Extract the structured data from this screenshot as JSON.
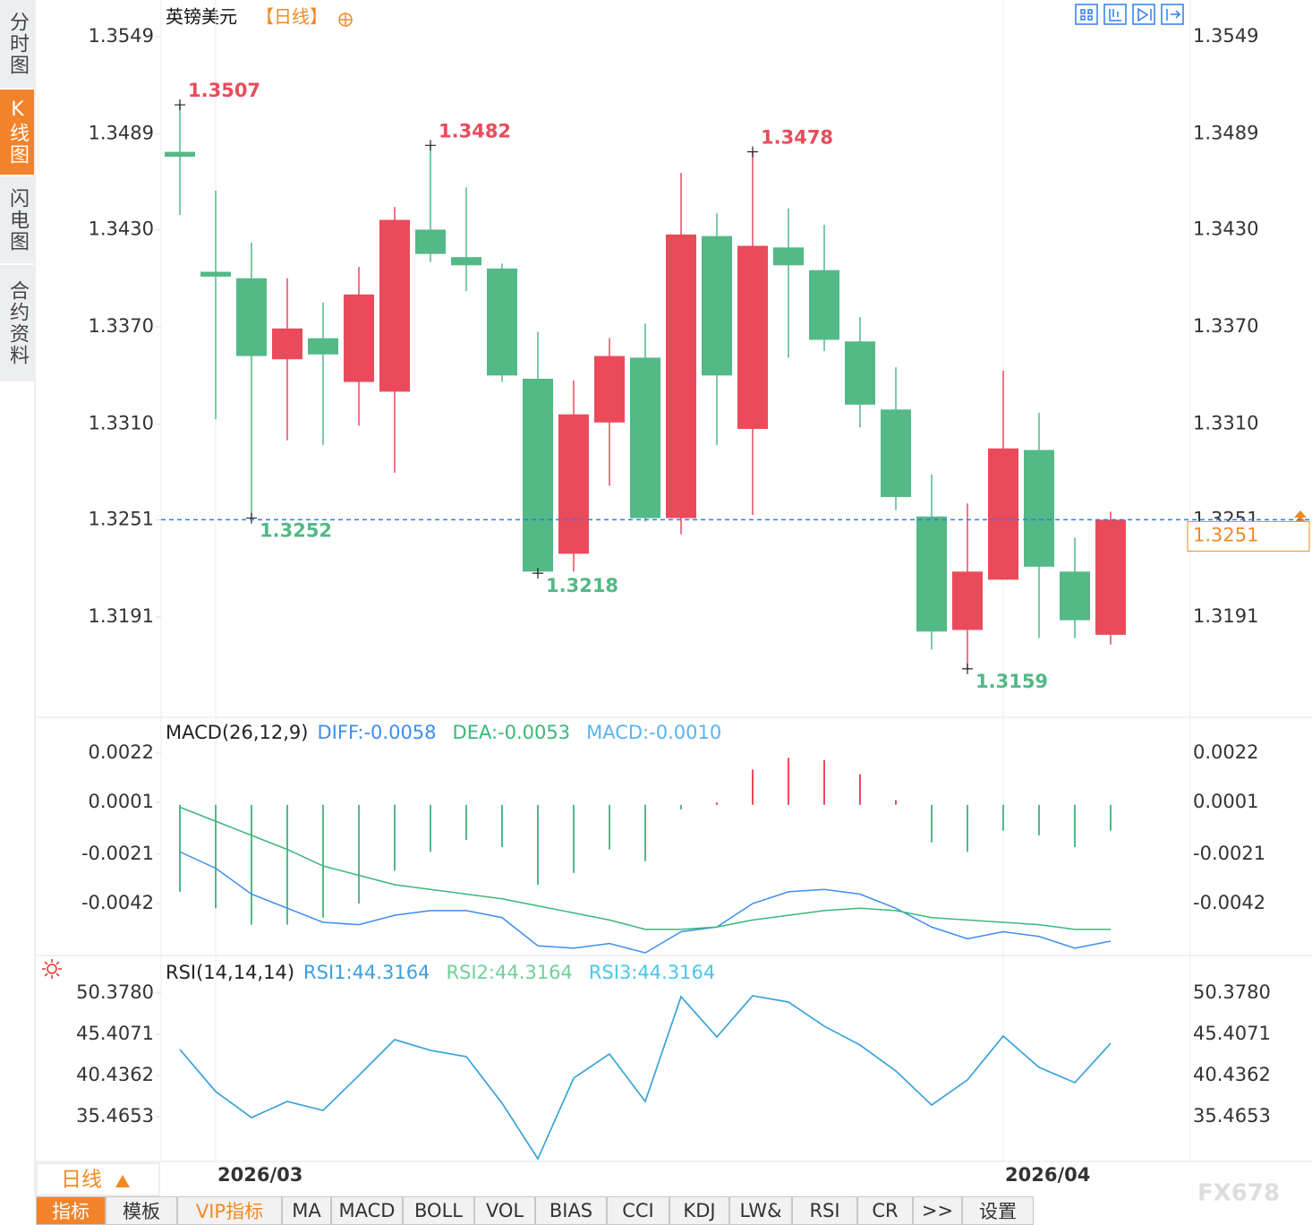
{
  "ui": {
    "sidebar_tabs": [
      "分时图",
      "K线图",
      "闪电图",
      "合约资料"
    ],
    "period_button": "日线",
    "toolbar": [
      "指标",
      "模板",
      "VIP指标",
      "MA",
      "MACD",
      "BOLL",
      "VOL",
      "BIAS",
      "CCI",
      "KDJ",
      "LW&",
      "RSI",
      "CR",
      ">>",
      "设置"
    ],
    "watermark": "FX678"
  },
  "chart_data": [
    {
      "type": "candlestick",
      "title": "英镑美元",
      "subtitle": "【日线】",
      "categories": [
        null,
        "2026/03",
        null,
        null,
        null,
        null,
        null,
        null,
        null,
        null,
        null,
        null,
        null,
        null,
        null,
        null,
        null,
        null,
        null,
        null,
        null,
        null,
        null,
        "2026/04",
        null,
        null,
        null
      ],
      "open": [
        1.3478,
        1.3404,
        1.34,
        1.335,
        1.3363,
        1.3336,
        1.333,
        1.343,
        1.3413,
        1.3406,
        1.3338,
        1.323,
        1.3311,
        1.3351,
        1.3252,
        1.3426,
        1.3307,
        1.3419,
        1.3405,
        1.3361,
        1.3319,
        1.3253,
        1.3183,
        1.3214,
        1.3294,
        1.3219,
        1.318
      ],
      "high": [
        1.3507,
        1.3454,
        1.3422,
        1.34,
        1.3385,
        1.3407,
        1.3444,
        1.3482,
        1.3456,
        1.3409,
        1.3367,
        1.3337,
        1.3363,
        1.3372,
        1.3465,
        1.344,
        1.3478,
        1.3443,
        1.3433,
        1.3376,
        1.3345,
        1.3279,
        1.3261,
        1.3343,
        1.3317,
        1.324,
        1.3256
      ],
      "low": [
        1.3439,
        1.3313,
        1.3252,
        1.33,
        1.3297,
        1.3309,
        1.328,
        1.341,
        1.3392,
        1.3336,
        1.3218,
        1.3219,
        1.3272,
        1.325,
        1.3242,
        1.3297,
        1.3254,
        1.3351,
        1.3355,
        1.3308,
        1.3257,
        1.3171,
        1.3159,
        1.3214,
        1.3178,
        1.3178,
        1.3174
      ],
      "close": [
        1.3475,
        1.3401,
        1.3352,
        1.3369,
        1.3353,
        1.339,
        1.3436,
        1.3415,
        1.3408,
        1.334,
        1.3219,
        1.3316,
        1.3352,
        1.3252,
        1.3427,
        1.334,
        1.342,
        1.3408,
        1.3362,
        1.3322,
        1.3265,
        1.3182,
        1.3219,
        1.3295,
        1.3222,
        1.3189,
        1.3251
      ],
      "up_color": "#e94b5b",
      "down_color": "#52b987",
      "marked_highs": [
        0,
        7,
        16
      ],
      "marked_lows": [
        2,
        10,
        22
      ],
      "last_price_line": true,
      "last_price_color": "#2f7df0",
      "last_label_color": "#f08a24",
      "ylim": [
        1.313,
        1.3572
      ],
      "yticks": [
        1.3549,
        1.3489,
        {
          "value": 1.343,
          "label": "1.3430"
        },
        {
          "value": 1.337,
          "label": "1.3370"
        },
        {
          "value": 1.331,
          "label": "1.3310"
        },
        1.3251,
        1.3191
      ]
    },
    {
      "type": "macd",
      "title": "MACD(26,12,9)",
      "series": [
        {
          "name": "DIFF:-0.0058",
          "color": "#3d8ef0",
          "style": "line",
          "values": [
            -0.002,
            -0.0027,
            -0.0038,
            -0.0044,
            -0.005,
            -0.0051,
            -0.0047,
            -0.0045,
            -0.0045,
            -0.0048,
            -0.006,
            -0.0061,
            -0.0059,
            -0.0063,
            -0.0054,
            -0.0052,
            -0.0042,
            -0.0037,
            -0.0036,
            -0.0038,
            -0.0044,
            -0.0052,
            -0.0057,
            -0.0054,
            -0.0056,
            -0.0061,
            -0.0058
          ]
        },
        {
          "name": "DEA:-0.0053",
          "color": "#3cb878",
          "style": "line",
          "values": [
            -0.0001,
            -0.0007,
            -0.0013,
            -0.0019,
            -0.0026,
            -0.003,
            -0.0034,
            -0.0036,
            -0.0038,
            -0.004,
            -0.0043,
            -0.0046,
            -0.0049,
            -0.0053,
            -0.0053,
            -0.0052,
            -0.0049,
            -0.0047,
            -0.0045,
            -0.0044,
            -0.0045,
            -0.0048,
            -0.0049,
            -0.005,
            -0.0051,
            -0.0053,
            -0.0053
          ]
        },
        {
          "name": "MACD:-0.0010",
          "color": "#5ab4f2",
          "style": "histogram",
          "up_color": "#e94b5b",
          "down_color": "#52b987",
          "values": [
            -0.0037,
            -0.0044,
            -0.0051,
            -0.0051,
            -0.0048,
            -0.0042,
            -0.0028,
            -0.002,
            -0.0015,
            -0.0018,
            -0.0034,
            -0.0029,
            -0.0019,
            -0.0024,
            -0.0002,
            0.0001,
            0.0015,
            0.002,
            0.0019,
            0.0013,
            0.0002,
            -0.0016,
            -0.002,
            -0.0011,
            -0.0013,
            -0.0018,
            -0.0011
          ]
        }
      ],
      "ylim": [
        -0.0066,
        0.0036
      ],
      "yticks": [
        0.0022,
        0.0001,
        -0.0021,
        -0.0042
      ]
    },
    {
      "type": "rsi",
      "title": "RSI(14,14,14)",
      "series": [
        {
          "name": "RSI1:44.3164",
          "color": "#3aa0e0",
          "values": [
            43.57,
            38.49,
            35.36,
            37.3,
            36.22,
            40.44,
            44.76,
            43.46,
            42.71,
            37.09,
            30.39,
            40.11,
            43.03,
            37.3,
            49.95,
            45.08,
            50.05,
            49.3,
            46.38,
            44.11,
            40.98,
            36.87,
            39.9,
            45.19,
            41.41,
            39.57,
            44.3164
          ]
        },
        {
          "name": "RSI2:44.3164",
          "color": "#6fd09a",
          "values": [
            43.57,
            38.49,
            35.36,
            37.3,
            36.22,
            40.44,
            44.76,
            43.46,
            42.71,
            37.09,
            30.39,
            40.11,
            43.03,
            37.3,
            49.95,
            45.08,
            50.05,
            49.3,
            46.38,
            44.11,
            40.98,
            36.87,
            39.9,
            45.19,
            41.41,
            39.57,
            44.3164
          ]
        },
        {
          "name": "RSI3:44.3164",
          "color": "#4cc6e8",
          "values": [
            43.57,
            38.49,
            35.36,
            37.3,
            36.22,
            40.44,
            44.76,
            43.46,
            42.71,
            37.09,
            30.39,
            40.11,
            43.03,
            37.3,
            49.95,
            45.08,
            50.05,
            49.3,
            46.38,
            44.11,
            40.98,
            36.87,
            39.9,
            45.19,
            41.41,
            39.57,
            44.3164
          ]
        }
      ],
      "ylim": [
        30.1,
        54.6
      ],
      "yticks": [
        {
          "value": 50.378,
          "label": "50.3780"
        },
        45.4071,
        40.4362,
        35.4653
      ]
    }
  ]
}
